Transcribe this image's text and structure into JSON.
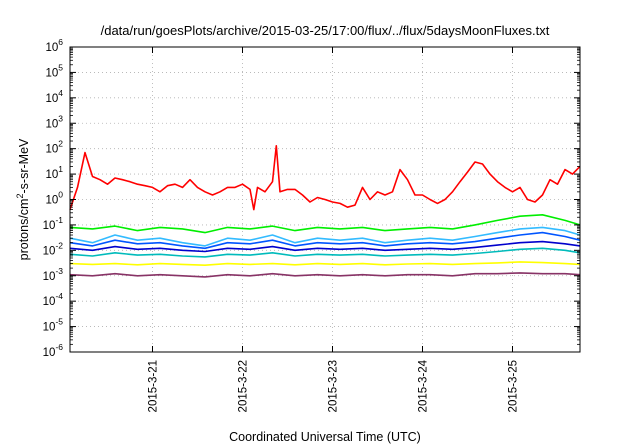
{
  "chart_data": {
    "type": "line",
    "title": "/data/run/goesPlots/archive/2015-03-25/17:00/flux/../flux/5daysMoonFluxes.txt",
    "xlabel": "Coordinated Universal Time (UTC)",
    "ylabel": "protons/cm²-s-sr-MeV",
    "yscale": "log",
    "ylim": [
      1e-06,
      1000000.0
    ],
    "xlim": [
      "2015-03-20T02:00",
      "2015-03-25T18:00"
    ],
    "grid": true,
    "legend": "none",
    "yticks": [
      {
        "value": 1e-06,
        "base": "10",
        "exp": "-6"
      },
      {
        "value": 1e-05,
        "base": "10",
        "exp": "-5"
      },
      {
        "value": 0.0001,
        "base": "10",
        "exp": "-4"
      },
      {
        "value": 0.001,
        "base": "10",
        "exp": "-3"
      },
      {
        "value": 0.01,
        "base": "10",
        "exp": "-2"
      },
      {
        "value": 0.1,
        "base": "10",
        "exp": "-1"
      },
      {
        "value": 1,
        "base": "10",
        "exp": "0"
      },
      {
        "value": 10.0,
        "base": "10",
        "exp": "1"
      },
      {
        "value": 100.0,
        "base": "10",
        "exp": "2"
      },
      {
        "value": 1000.0,
        "base": "10",
        "exp": "3"
      },
      {
        "value": 10000.0,
        "base": "10",
        "exp": "4"
      },
      {
        "value": 100000.0,
        "base": "10",
        "exp": "5"
      },
      {
        "value": 1000000.0,
        "base": "10",
        "exp": "6"
      }
    ],
    "xticks": [
      {
        "value": "2015-03-21T00:00",
        "label": "2015-3-21"
      },
      {
        "value": "2015-03-22T00:00",
        "label": "2015-3-22"
      },
      {
        "value": "2015-03-23T00:00",
        "label": "2015-3-23"
      },
      {
        "value": "2015-03-24T00:00",
        "label": "2015-3-24"
      },
      {
        "value": "2015-03-25T00:00",
        "label": "2015-3-25"
      }
    ],
    "series": [
      {
        "color": "#ff0000",
        "x": [
          "2015-03-20T02:00",
          "2015-03-20T04:00",
          "2015-03-20T06:00",
          "2015-03-20T08:00",
          "2015-03-20T10:00",
          "2015-03-20T12:00",
          "2015-03-20T14:00",
          "2015-03-20T16:00",
          "2015-03-20T18:00",
          "2015-03-20T20:00",
          "2015-03-20T22:00",
          "2015-03-21T00:00",
          "2015-03-21T02:00",
          "2015-03-21T04:00",
          "2015-03-21T06:00",
          "2015-03-21T08:00",
          "2015-03-21T10:00",
          "2015-03-21T12:00",
          "2015-03-21T14:00",
          "2015-03-21T16:00",
          "2015-03-21T18:00",
          "2015-03-21T20:00",
          "2015-03-21T22:00",
          "2015-03-22T00:00",
          "2015-03-22T02:00",
          "2015-03-22T03:00",
          "2015-03-22T04:00",
          "2015-03-22T06:00",
          "2015-03-22T08:00",
          "2015-03-22T09:00",
          "2015-03-22T10:00",
          "2015-03-22T12:00",
          "2015-03-22T14:00",
          "2015-03-22T16:00",
          "2015-03-22T18:00",
          "2015-03-22T20:00",
          "2015-03-22T22:00",
          "2015-03-23T00:00",
          "2015-03-23T02:00",
          "2015-03-23T04:00",
          "2015-03-23T06:00",
          "2015-03-23T08:00",
          "2015-03-23T10:00",
          "2015-03-23T12:00",
          "2015-03-23T14:00",
          "2015-03-23T16:00",
          "2015-03-23T18:00",
          "2015-03-23T20:00",
          "2015-03-23T22:00",
          "2015-03-24T00:00",
          "2015-03-24T02:00",
          "2015-03-24T04:00",
          "2015-03-24T06:00",
          "2015-03-24T08:00",
          "2015-03-24T10:00",
          "2015-03-24T12:00",
          "2015-03-24T14:00",
          "2015-03-24T16:00",
          "2015-03-24T18:00",
          "2015-03-24T20:00",
          "2015-03-24T22:00",
          "2015-03-25T00:00",
          "2015-03-25T02:00",
          "2015-03-25T04:00",
          "2015-03-25T06:00",
          "2015-03-25T08:00",
          "2015-03-25T10:00",
          "2015-03-25T12:00",
          "2015-03-25T14:00",
          "2015-03-25T16:00",
          "2015-03-25T18:00"
        ],
        "y": [
          0.4,
          3,
          70,
          8,
          6,
          4,
          7,
          6,
          5,
          4,
          3.5,
          3,
          2,
          3.5,
          4,
          3,
          6,
          3,
          2,
          1.5,
          2,
          3,
          3,
          4,
          2.5,
          0.4,
          3,
          2,
          5,
          130,
          2,
          2.5,
          2.5,
          1.5,
          0.8,
          1.2,
          1,
          0.8,
          0.7,
          0.5,
          0.6,
          3,
          1,
          2,
          1.5,
          2,
          15,
          6,
          1.5,
          1.5,
          1,
          0.7,
          1,
          2,
          5,
          12,
          30,
          25,
          10,
          5,
          3,
          2,
          3,
          1,
          0.8,
          1.5,
          6,
          4,
          15,
          10,
          20
        ]
      },
      {
        "color": "#00ee00",
        "x": [
          "2015-03-20T02:00",
          "2015-03-20T08:00",
          "2015-03-20T14:00",
          "2015-03-20T20:00",
          "2015-03-21T02:00",
          "2015-03-21T08:00",
          "2015-03-21T14:00",
          "2015-03-21T20:00",
          "2015-03-22T02:00",
          "2015-03-22T08:00",
          "2015-03-22T14:00",
          "2015-03-22T20:00",
          "2015-03-23T02:00",
          "2015-03-23T08:00",
          "2015-03-23T14:00",
          "2015-03-23T20:00",
          "2015-03-24T02:00",
          "2015-03-24T08:00",
          "2015-03-24T14:00",
          "2015-03-24T20:00",
          "2015-03-25T02:00",
          "2015-03-25T08:00",
          "2015-03-25T14:00",
          "2015-03-25T18:00"
        ],
        "y": [
          0.08,
          0.07,
          0.09,
          0.06,
          0.08,
          0.07,
          0.05,
          0.08,
          0.07,
          0.09,
          0.06,
          0.08,
          0.07,
          0.08,
          0.06,
          0.07,
          0.08,
          0.07,
          0.1,
          0.15,
          0.22,
          0.25,
          0.15,
          0.1
        ]
      },
      {
        "color": "#33bbff",
        "x": [
          "2015-03-20T02:00",
          "2015-03-20T08:00",
          "2015-03-20T14:00",
          "2015-03-20T20:00",
          "2015-03-21T02:00",
          "2015-03-21T08:00",
          "2015-03-21T14:00",
          "2015-03-21T20:00",
          "2015-03-22T02:00",
          "2015-03-22T08:00",
          "2015-03-22T14:00",
          "2015-03-22T20:00",
          "2015-03-23T02:00",
          "2015-03-23T08:00",
          "2015-03-23T14:00",
          "2015-03-23T20:00",
          "2015-03-24T02:00",
          "2015-03-24T08:00",
          "2015-03-24T14:00",
          "2015-03-24T20:00",
          "2015-03-25T02:00",
          "2015-03-25T08:00",
          "2015-03-25T14:00",
          "2015-03-25T18:00"
        ],
        "y": [
          0.03,
          0.02,
          0.04,
          0.025,
          0.03,
          0.02,
          0.015,
          0.03,
          0.025,
          0.04,
          0.02,
          0.03,
          0.025,
          0.03,
          0.02,
          0.025,
          0.03,
          0.025,
          0.035,
          0.05,
          0.07,
          0.08,
          0.06,
          0.04
        ]
      },
      {
        "color": "#0055ff",
        "x": [
          "2015-03-20T02:00",
          "2015-03-20T08:00",
          "2015-03-20T14:00",
          "2015-03-20T20:00",
          "2015-03-21T02:00",
          "2015-03-21T08:00",
          "2015-03-21T14:00",
          "2015-03-21T20:00",
          "2015-03-22T02:00",
          "2015-03-22T08:00",
          "2015-03-22T14:00",
          "2015-03-22T20:00",
          "2015-03-23T02:00",
          "2015-03-23T08:00",
          "2015-03-23T14:00",
          "2015-03-23T20:00",
          "2015-03-24T02:00",
          "2015-03-24T08:00",
          "2015-03-24T14:00",
          "2015-03-24T20:00",
          "2015-03-25T02:00",
          "2015-03-25T08:00",
          "2015-03-25T14:00",
          "2015-03-25T18:00"
        ],
        "y": [
          0.02,
          0.015,
          0.025,
          0.018,
          0.02,
          0.015,
          0.012,
          0.02,
          0.018,
          0.025,
          0.015,
          0.02,
          0.018,
          0.02,
          0.015,
          0.018,
          0.02,
          0.018,
          0.022,
          0.03,
          0.04,
          0.05,
          0.035,
          0.025
        ]
      },
      {
        "color": "#0000cc",
        "x": [
          "2015-03-20T02:00",
          "2015-03-20T08:00",
          "2015-03-20T14:00",
          "2015-03-20T20:00",
          "2015-03-21T02:00",
          "2015-03-21T08:00",
          "2015-03-21T14:00",
          "2015-03-21T20:00",
          "2015-03-22T02:00",
          "2015-03-22T08:00",
          "2015-03-22T14:00",
          "2015-03-22T20:00",
          "2015-03-23T02:00",
          "2015-03-23T08:00",
          "2015-03-23T14:00",
          "2015-03-23T20:00",
          "2015-03-24T02:00",
          "2015-03-24T08:00",
          "2015-03-24T14:00",
          "2015-03-24T20:00",
          "2015-03-25T02:00",
          "2015-03-25T08:00",
          "2015-03-25T14:00",
          "2015-03-25T18:00"
        ],
        "y": [
          0.012,
          0.01,
          0.014,
          0.011,
          0.012,
          0.01,
          0.009,
          0.012,
          0.011,
          0.014,
          0.01,
          0.012,
          0.011,
          0.012,
          0.01,
          0.011,
          0.012,
          0.011,
          0.013,
          0.016,
          0.02,
          0.022,
          0.018,
          0.015
        ]
      },
      {
        "color": "#00bbbb",
        "x": [
          "2015-03-20T02:00",
          "2015-03-20T08:00",
          "2015-03-20T14:00",
          "2015-03-20T20:00",
          "2015-03-21T02:00",
          "2015-03-21T08:00",
          "2015-03-21T14:00",
          "2015-03-21T20:00",
          "2015-03-22T02:00",
          "2015-03-22T08:00",
          "2015-03-22T14:00",
          "2015-03-22T20:00",
          "2015-03-23T02:00",
          "2015-03-23T08:00",
          "2015-03-23T14:00",
          "2015-03-23T20:00",
          "2015-03-24T02:00",
          "2015-03-24T08:00",
          "2015-03-24T14:00",
          "2015-03-24T20:00",
          "2015-03-25T02:00",
          "2015-03-25T08:00",
          "2015-03-25T14:00",
          "2015-03-25T18:00"
        ],
        "y": [
          0.007,
          0.006,
          0.008,
          0.0065,
          0.007,
          0.006,
          0.0055,
          0.007,
          0.0065,
          0.008,
          0.006,
          0.007,
          0.0065,
          0.007,
          0.006,
          0.0065,
          0.007,
          0.0065,
          0.0075,
          0.009,
          0.011,
          0.012,
          0.01,
          0.008
        ]
      },
      {
        "color": "#ffff00",
        "x": [
          "2015-03-20T02:00",
          "2015-03-20T08:00",
          "2015-03-20T14:00",
          "2015-03-20T20:00",
          "2015-03-21T02:00",
          "2015-03-21T08:00",
          "2015-03-21T14:00",
          "2015-03-21T20:00",
          "2015-03-22T02:00",
          "2015-03-22T08:00",
          "2015-03-22T14:00",
          "2015-03-22T20:00",
          "2015-03-23T02:00",
          "2015-03-23T08:00",
          "2015-03-23T14:00",
          "2015-03-23T20:00",
          "2015-03-24T02:00",
          "2015-03-24T08:00",
          "2015-03-24T14:00",
          "2015-03-24T20:00",
          "2015-03-25T02:00",
          "2015-03-25T08:00",
          "2015-03-25T14:00",
          "2015-03-25T18:00"
        ],
        "y": [
          0.003,
          0.0028,
          0.003,
          0.0027,
          0.003,
          0.0028,
          0.0026,
          0.003,
          0.0028,
          0.003,
          0.0027,
          0.003,
          0.0028,
          0.003,
          0.0027,
          0.0029,
          0.003,
          0.0028,
          0.003,
          0.0032,
          0.0035,
          0.0033,
          0.003,
          0.0028
        ]
      },
      {
        "color": "#883366",
        "x": [
          "2015-03-20T02:00",
          "2015-03-20T08:00",
          "2015-03-20T14:00",
          "2015-03-20T20:00",
          "2015-03-21T02:00",
          "2015-03-21T08:00",
          "2015-03-21T14:00",
          "2015-03-21T20:00",
          "2015-03-22T02:00",
          "2015-03-22T08:00",
          "2015-03-22T14:00",
          "2015-03-22T20:00",
          "2015-03-23T02:00",
          "2015-03-23T08:00",
          "2015-03-23T14:00",
          "2015-03-23T20:00",
          "2015-03-24T02:00",
          "2015-03-24T08:00",
          "2015-03-24T14:00",
          "2015-03-24T20:00",
          "2015-03-25T02:00",
          "2015-03-25T08:00",
          "2015-03-25T14:00",
          "2015-03-25T18:00"
        ],
        "y": [
          0.0011,
          0.001,
          0.0012,
          0.001,
          0.0011,
          0.001,
          0.0009,
          0.0011,
          0.001,
          0.0012,
          0.001,
          0.0011,
          0.001,
          0.0011,
          0.001,
          0.0011,
          0.0011,
          0.001,
          0.0012,
          0.0012,
          0.0013,
          0.0012,
          0.0012,
          0.0011
        ]
      }
    ]
  }
}
